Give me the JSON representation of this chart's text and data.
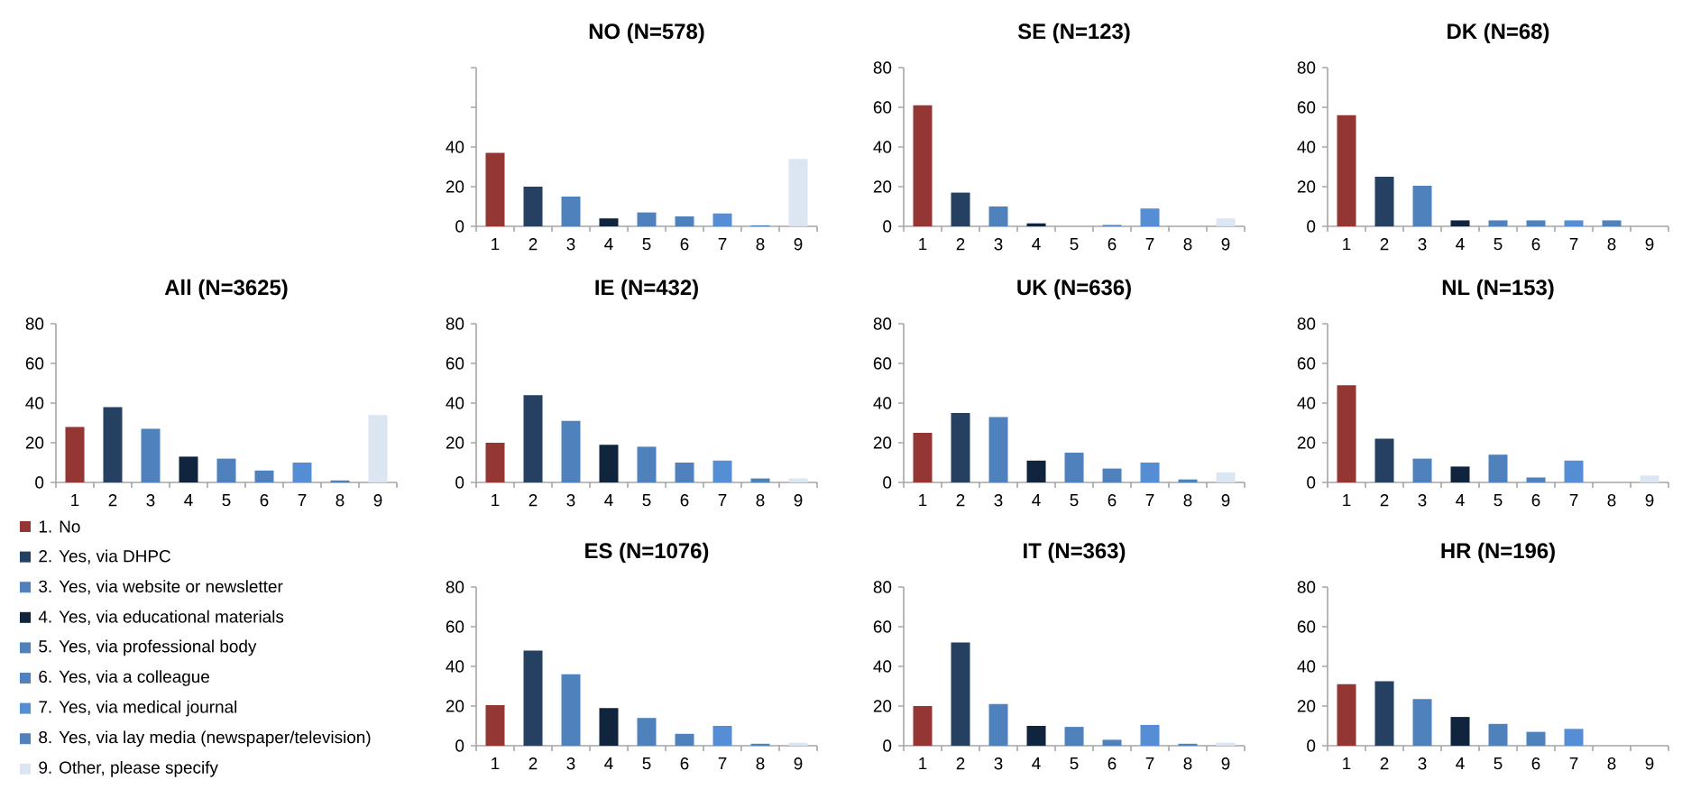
{
  "chart_data": [
    {
      "type": "bar",
      "title": "NO (N=578)",
      "categories": [
        "1",
        "2",
        "3",
        "4",
        "5",
        "6",
        "7",
        "8",
        "9"
      ],
      "values": [
        37,
        20,
        15,
        4,
        7,
        5,
        6.5,
        0.5,
        34
      ],
      "colors": [
        "#943634",
        "#254061",
        "#4f81bd",
        "#10243e",
        "#4f81bd",
        "#4f81bd",
        "#558ed5",
        "#4f81bd",
        "#dce6f2"
      ],
      "ylim": [
        0,
        80
      ],
      "yticks": [
        0,
        20,
        40,
        {
          "value": 60,
          "label": null
        },
        {
          "value": 80,
          "label": null
        }
      ]
    },
    {
      "type": "bar",
      "title": "SE (N=123)",
      "categories": [
        "1",
        "2",
        "3",
        "4",
        "5",
        "6",
        "7",
        "8",
        "9"
      ],
      "values": [
        61,
        17,
        10,
        1.5,
        0,
        0.7,
        9,
        0,
        4
      ],
      "colors": [
        "#943634",
        "#254061",
        "#4f81bd",
        "#10243e",
        "#4f81bd",
        "#4f81bd",
        "#558ed5",
        "#4f81bd",
        "#dce6f2"
      ],
      "ylim": [
        0,
        80
      ],
      "yticks": [
        0,
        20,
        40,
        60,
        80
      ]
    },
    {
      "type": "bar",
      "title": "DK (N=68)",
      "categories": [
        "1",
        "2",
        "3",
        "4",
        "5",
        "6",
        "7",
        "8",
        "9"
      ],
      "values": [
        56,
        25,
        20.5,
        3,
        3,
        3,
        3,
        3,
        0
      ],
      "colors": [
        "#943634",
        "#254061",
        "#4f81bd",
        "#10243e",
        "#4f81bd",
        "#4f81bd",
        "#558ed5",
        "#4f81bd",
        "#dce6f2"
      ],
      "ylim": [
        0,
        80
      ],
      "yticks": [
        0,
        20,
        40,
        60,
        80
      ]
    },
    {
      "type": "bar",
      "title": "All (N=3625)",
      "categories": [
        "1",
        "2",
        "3",
        "4",
        "5",
        "6",
        "7",
        "8",
        "9"
      ],
      "values": [
        28,
        38,
        27,
        13,
        12,
        6,
        10,
        1,
        34
      ],
      "colors": [
        "#943634",
        "#254061",
        "#4f81bd",
        "#10243e",
        "#4f81bd",
        "#4f81bd",
        "#558ed5",
        "#4f81bd",
        "#dce6f2"
      ],
      "ylim": [
        0,
        80
      ],
      "yticks": [
        0,
        20,
        40,
        60,
        80
      ]
    },
    {
      "type": "bar",
      "title": "IE (N=432)",
      "categories": [
        "1",
        "2",
        "3",
        "4",
        "5",
        "6",
        "7",
        "8",
        "9"
      ],
      "values": [
        20,
        44,
        31,
        19,
        18,
        10,
        11,
        2,
        2
      ],
      "colors": [
        "#943634",
        "#254061",
        "#4f81bd",
        "#10243e",
        "#4f81bd",
        "#4f81bd",
        "#558ed5",
        "#4f81bd",
        "#dce6f2"
      ],
      "ylim": [
        0,
        80
      ],
      "yticks": [
        0,
        20,
        40,
        60,
        80
      ]
    },
    {
      "type": "bar",
      "title": "UK (N=636)",
      "categories": [
        "1",
        "2",
        "3",
        "4",
        "5",
        "6",
        "7",
        "8",
        "9"
      ],
      "values": [
        25,
        35,
        33,
        11,
        15,
        7,
        10,
        1.5,
        5
      ],
      "colors": [
        "#943634",
        "#254061",
        "#4f81bd",
        "#10243e",
        "#4f81bd",
        "#4f81bd",
        "#558ed5",
        "#4f81bd",
        "#dce6f2"
      ],
      "ylim": [
        0,
        80
      ],
      "yticks": [
        0,
        20,
        40,
        60,
        80
      ]
    },
    {
      "type": "bar",
      "title": "NL (N=153)",
      "categories": [
        "1",
        "2",
        "3",
        "4",
        "5",
        "6",
        "7",
        "8",
        "9"
      ],
      "values": [
        49,
        22,
        12,
        8,
        14,
        2.5,
        11,
        0,
        3.5
      ],
      "colors": [
        "#943634",
        "#254061",
        "#4f81bd",
        "#10243e",
        "#4f81bd",
        "#4f81bd",
        "#558ed5",
        "#4f81bd",
        "#dce6f2"
      ],
      "ylim": [
        0,
        80
      ],
      "yticks": [
        0,
        20,
        40,
        60,
        80
      ]
    },
    {
      "type": "other",
      "categories": [
        "1. No",
        "2. Yes, via DHPC",
        "3. Yes, via website or newsletter",
        "4. Yes, via educational materials",
        "5. Yes, via professional body",
        "6. Yes, via a colleague",
        "7. Yes, via medical journal",
        "8. Yes, via lay media (newspaper/television)",
        "9. Other, please specify"
      ],
      "colors": [
        "#943634",
        "#254061",
        "#4f81bd",
        "#10243e",
        "#4f81bd",
        "#4f81bd",
        "#558ed5",
        "#4f81bd",
        "#dce6f2"
      ]
    },
    {
      "type": "bar",
      "title": "ES (N=1076)",
      "categories": [
        "1",
        "2",
        "3",
        "4",
        "5",
        "6",
        "7",
        "8",
        "9"
      ],
      "values": [
        20.5,
        48,
        36,
        19,
        14,
        6,
        10,
        1,
        1.5
      ],
      "colors": [
        "#943634",
        "#254061",
        "#4f81bd",
        "#10243e",
        "#4f81bd",
        "#4f81bd",
        "#558ed5",
        "#4f81bd",
        "#dce6f2"
      ],
      "ylim": [
        0,
        80
      ],
      "yticks": [
        0,
        20,
        40,
        60,
        80
      ]
    },
    {
      "type": "bar",
      "title": "IT (N=363)",
      "categories": [
        "1",
        "2",
        "3",
        "4",
        "5",
        "6",
        "7",
        "8",
        "9"
      ],
      "values": [
        20,
        52,
        21,
        10,
        9.5,
        3,
        10.5,
        1,
        1.5
      ],
      "colors": [
        "#943634",
        "#254061",
        "#4f81bd",
        "#10243e",
        "#4f81bd",
        "#4f81bd",
        "#558ed5",
        "#4f81bd",
        "#dce6f2"
      ],
      "ylim": [
        0,
        80
      ],
      "yticks": [
        0,
        20,
        40,
        60,
        80
      ]
    },
    {
      "type": "bar",
      "title": "HR (N=196)",
      "categories": [
        "1",
        "2",
        "3",
        "4",
        "5",
        "6",
        "7",
        "8",
        "9"
      ],
      "values": [
        31,
        32.5,
        23.5,
        14.5,
        11,
        7,
        8.5,
        0,
        0
      ],
      "colors": [
        "#943634",
        "#254061",
        "#4f81bd",
        "#10243e",
        "#4f81bd",
        "#4f81bd",
        "#558ed5",
        "#4f81bd",
        "#dce6f2"
      ],
      "ylim": [
        0,
        80
      ],
      "yticks": [
        0,
        20,
        40,
        60,
        80
      ]
    }
  ]
}
